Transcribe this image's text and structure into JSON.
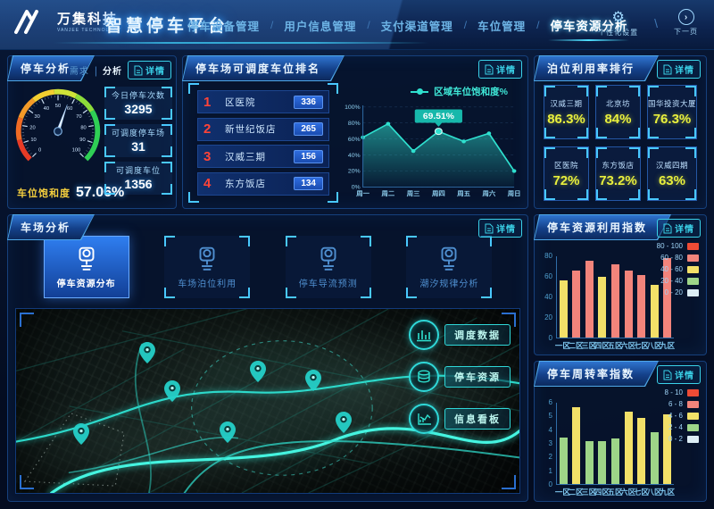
{
  "app": {
    "logo_text": "万集科技",
    "logo_sub": "VANJEE TECHNOLOGY",
    "title": "智慧停车平台"
  },
  "nav": {
    "separator": "/",
    "items": [
      {
        "label": "停车设备管理",
        "active": false
      },
      {
        "label": "用户信息管理",
        "active": false
      },
      {
        "label": "支付渠道管理",
        "active": false
      },
      {
        "label": "车位管理",
        "active": false
      },
      {
        "label": "停车资源分析",
        "active": true
      }
    ]
  },
  "topbar_actions": [
    {
      "label": "个性化设置",
      "icon": "gear-icon"
    },
    {
      "label": "下一页",
      "icon": "next-page-icon"
    }
  ],
  "panels": {
    "parking_analysis": {
      "title": "停车分析",
      "toggle_tabs": [
        "需求",
        "分析"
      ],
      "active_toggle": "分析",
      "toggle_separator": "|",
      "detail_label": "详情",
      "gauge": {
        "label": "车位饱和度",
        "value": 57.06,
        "display": "57.06%",
        "min": 0,
        "max": 100
      },
      "stats": [
        {
          "label": "今日停车次数",
          "value": "3295"
        },
        {
          "label": "可调度停车场",
          "value": "31"
        },
        {
          "label": "可调度车位",
          "value": "1356"
        }
      ]
    },
    "dispatch_ranking": {
      "title": "停车场可调度车位排名",
      "detail_label": "详情",
      "rows": [
        {
          "rank": "1",
          "name": "区医院",
          "value": "336"
        },
        {
          "rank": "2",
          "name": "新世纪饭店",
          "value": "265"
        },
        {
          "rank": "3",
          "name": "汉威三期",
          "value": "156"
        },
        {
          "rank": "4",
          "name": "东方饭店",
          "value": "134"
        }
      ]
    },
    "berth_utilization": {
      "title": "泊位利用率排行",
      "detail_label": "详情",
      "cards": [
        {
          "name": "汉威三期",
          "value": "86.3%"
        },
        {
          "name": "北京坊",
          "value": "84%"
        },
        {
          "name": "国华投资大厦",
          "value": "76.3%"
        },
        {
          "name": "区医院",
          "value": "72%"
        },
        {
          "name": "东方饭店",
          "value": "73.2%"
        },
        {
          "name": "汉威四期",
          "value": "63%"
        }
      ]
    },
    "lot_analysis": {
      "title": "车场分析",
      "detail_label": "详情",
      "tabs": [
        {
          "label": "停车资源分布",
          "active": true
        },
        {
          "label": "车场泊位利用",
          "active": false
        },
        {
          "label": "停车导流预测",
          "active": false
        },
        {
          "label": "潮汐规律分析",
          "active": false
        }
      ],
      "map_buttons": [
        {
          "label": "调度数据",
          "icon": "bars-icon"
        },
        {
          "label": "停车资源",
          "icon": "database-icon"
        },
        {
          "label": "信息看板",
          "icon": "board-icon"
        }
      ]
    },
    "resource_index": {
      "title": "停车资源利用指数",
      "detail_label": "详情"
    },
    "turnover_index": {
      "title": "停车周转率指数",
      "detail_label": "详情"
    }
  },
  "chart_data": [
    {
      "type": "line",
      "title": "区域车位饱和度%",
      "legend": [
        "区域车位饱和度%"
      ],
      "x": [
        "周一",
        "周二",
        "周三",
        "周四",
        "周五",
        "周六",
        "周日"
      ],
      "values": [
        62,
        79,
        45,
        69.51,
        57,
        67,
        20
      ],
      "ylim": [
        0,
        100
      ],
      "yticks": [
        "0%",
        "20%",
        "40%",
        "60%",
        "80%",
        "100%"
      ],
      "highlight_index": 3,
      "tooltip": "69.51%",
      "line_color": "#2fe0cf",
      "grid": true
    },
    {
      "type": "bar",
      "title": "停车资源利用指数",
      "categories": [
        "一区",
        "二区",
        "三区",
        "四区",
        "五区",
        "六区",
        "七区",
        "八区",
        "九区"
      ],
      "values": [
        56,
        65,
        75,
        59,
        71,
        65,
        61,
        51,
        77
      ],
      "ylim": [
        0,
        80
      ],
      "yticks": [
        0,
        20,
        40,
        60,
        80
      ],
      "legend": [
        {
          "label": "80 - 100",
          "min": 80,
          "color": "#ee4b35"
        },
        {
          "label": "60 - 80",
          "min": 60,
          "color": "#f2847b"
        },
        {
          "label": "40 - 60",
          "min": 40,
          "color": "#f2e068"
        },
        {
          "label": "20 - 40",
          "min": 20,
          "color": "#9ed588"
        },
        {
          "label": "0 - 20",
          "min": 0,
          "color": "#dcedf5"
        }
      ],
      "legend_position": "top-right"
    },
    {
      "type": "bar",
      "title": "停车周转率指数",
      "categories": [
        "一区",
        "二区",
        "三区",
        "四区",
        "五区",
        "六区",
        "七区",
        "八区",
        "九区"
      ],
      "values": [
        3.4,
        5.6,
        3.1,
        3.1,
        3.3,
        5.3,
        4.8,
        3.8,
        5.1
      ],
      "ylim": [
        0,
        6
      ],
      "yticks": [
        0,
        1,
        2,
        3,
        4,
        5,
        6
      ],
      "legend": [
        {
          "label": "8 - 10",
          "min": 8,
          "color": "#ee4b35"
        },
        {
          "label": "6 - 8",
          "min": 6,
          "color": "#f2847b"
        },
        {
          "label": "4 - 6",
          "min": 4,
          "color": "#f2e068"
        },
        {
          "label": "2 - 4",
          "min": 2,
          "color": "#9ed588"
        },
        {
          "label": "0 - 2",
          "min": 0,
          "color": "#dcedf5"
        }
      ],
      "legend_position": "top-right"
    }
  ],
  "colors": {
    "accent_cyan": "#3fd6ff",
    "accent_teal": "#2fe0cf",
    "value_yellow": "#e8ef3d",
    "rank_red": "#ff4438"
  }
}
